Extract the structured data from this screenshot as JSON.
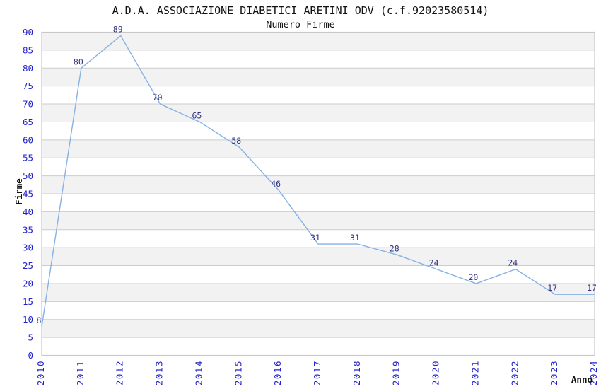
{
  "header": {
    "title": "A.D.A. ASSOCIAZIONE DIABETICI ARETINI ODV (c.f.92023580514)",
    "subtitle": "Numero Firme"
  },
  "chart_data": {
    "type": "line",
    "title": "A.D.A. ASSOCIAZIONE DIABETICI ARETINI ODV (c.f.92023580514)",
    "subtitle": "Numero Firme",
    "xlabel": "Anno",
    "ylabel": "Firme",
    "categories": [
      "2010",
      "2011",
      "2012",
      "2013",
      "2014",
      "2015",
      "2016",
      "2017",
      "2018",
      "2019",
      "2020",
      "2021",
      "2022",
      "2023",
      "2024"
    ],
    "series": [
      {
        "name": "Numero Firme",
        "values": [
          8,
          80,
          89,
          70,
          65,
          58,
          46,
          31,
          31,
          28,
          24,
          20,
          24,
          17,
          17
        ]
      }
    ],
    "ylim": [
      0,
      90
    ],
    "ytick_step": 5,
    "grid": "horizontal",
    "alternating_bands": true,
    "legend_position": "none",
    "value_labels_shown": true,
    "colors": {
      "line": "#85b2e2",
      "value_label": "#31317e",
      "tick_label": "#2424cc",
      "band": "#f2f2f2",
      "grid_line": "#cccccc",
      "plot_border": "#c8c8c8",
      "text": "#111111",
      "background": "#ffffff"
    }
  }
}
